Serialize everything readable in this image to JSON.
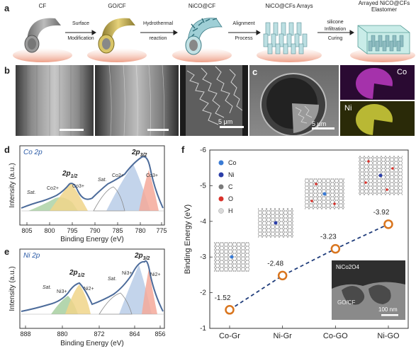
{
  "panel_a": {
    "letter": "a",
    "stages": [
      "CF",
      "GO/CF",
      "NiCO@CF",
      "NiCO@CFs Arrays",
      "Arrayed NiCO@CFs Elastomer"
    ],
    "steps": [
      {
        "top": "Surface",
        "bottom": "Modification"
      },
      {
        "top": "Hydrothermal",
        "bottom": "reaction"
      },
      {
        "top": "Alignment",
        "bottom": "Process"
      },
      {
        "top": "silicone",
        "mid": "Infiltration",
        "bottom": "Curing"
      }
    ]
  },
  "panel_b": {
    "letter": "b",
    "scale_label": "5 μm"
  },
  "panel_c": {
    "letter": "c",
    "scale_label": "5 μm",
    "map1": "Co",
    "map2": "Ni"
  },
  "panel_d": {
    "letter": "d",
    "label": "Co 2p",
    "peak1": "2p",
    "peak1_sub": "1/2",
    "peak2": "2p",
    "peak2_sub": "3/2",
    "annotations": [
      "Sat.",
      "Co2+",
      "Co3+",
      "Sat.",
      "Co2+",
      "Co3+"
    ],
    "xlabel": "Binding Energy (eV)",
    "ylabel": "Intensity (a.u.)",
    "xticks": [
      "805",
      "800",
      "795",
      "790",
      "785",
      "780",
      "775"
    ]
  },
  "panel_e": {
    "letter": "e",
    "label": "Ni 2p",
    "peak1": "2p",
    "peak1_sub": "1/2",
    "peak2": "2p",
    "peak2_sub": "3/2",
    "annotations": [
      "Sat.",
      "Ni3+",
      "Ni2+",
      "Sat.",
      "Ni3+",
      "Ni2+"
    ],
    "xlabel": "Binding Energy (eV)",
    "ylabel": "Intensity (a.u.)",
    "xticks": [
      "888",
      "880",
      "872",
      "864",
      "856"
    ]
  },
  "panel_f": {
    "letter": "f",
    "legend": [
      "Co",
      "Ni",
      "C",
      "O",
      "H"
    ],
    "legend_colors": [
      "#3a7bd5",
      "#2b3ea8",
      "#7a7a7a",
      "#d9322b",
      "#d9d9d9"
    ],
    "inset_top": "NiCo2O4",
    "inset_bottom": "GO/CF",
    "inset_scale": "100 nm"
  },
  "chart_data": {
    "type": "line",
    "categories": [
      "Co-Gr",
      "Ni-Gr",
      "Co-GO",
      "Ni-GO"
    ],
    "values": [
      -1.52,
      -2.48,
      -3.23,
      -3.92
    ],
    "value_labels": [
      "-1.52",
      "-2.48",
      "-3.23",
      "-3.92"
    ],
    "ylabel": "Binding Energy (eV)",
    "ylim": [
      -1,
      -6
    ],
    "yticks": [
      "-1",
      "-2",
      "-3",
      "-4",
      "-5",
      "-6"
    ],
    "line_style": "dashed",
    "line_color": "#1f3c7a",
    "marker_color": "#d9751e"
  }
}
